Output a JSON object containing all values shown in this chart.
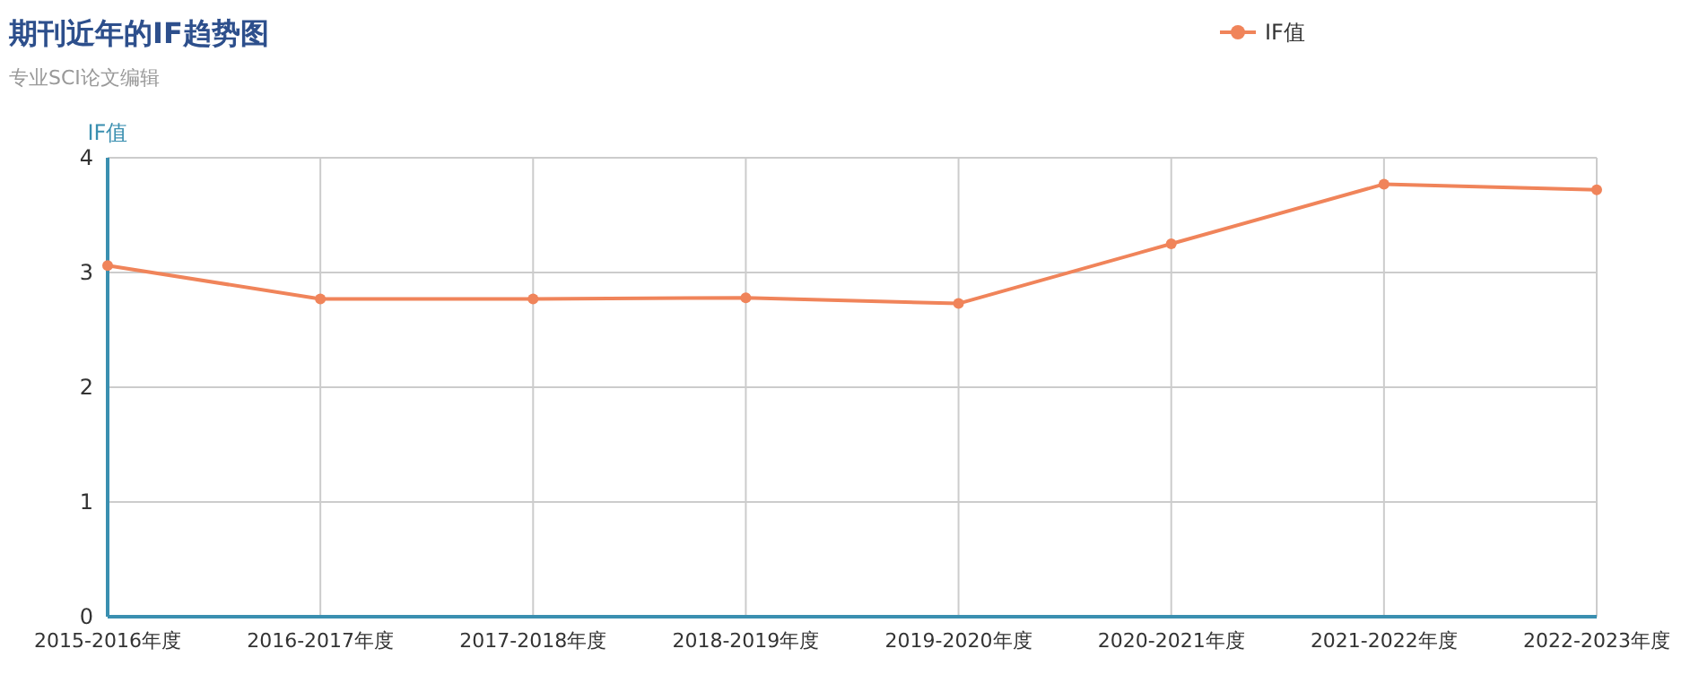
{
  "chart_data": {
    "type": "line",
    "title": "期刊近年的IF趋势图",
    "subtitle": "专业SCI论文编辑",
    "ylabel": "IF值",
    "categories": [
      "2015-2016年度",
      "2016-2017年度",
      "2017-2018年度",
      "2018-2019年度",
      "2019-2020年度",
      "2020-2021年度",
      "2021-2022年度",
      "2022-2023年度"
    ],
    "series": [
      {
        "name": "IF值",
        "color": "#f0845a",
        "values": [
          3.06,
          2.77,
          2.77,
          2.78,
          2.73,
          3.25,
          3.77,
          3.72
        ]
      }
    ],
    "ylim": [
      0,
      4
    ],
    "yticks": [
      0,
      1,
      2,
      3,
      4
    ],
    "grid": true,
    "legend": "top right",
    "marker": "circle",
    "line_style": "solid"
  }
}
